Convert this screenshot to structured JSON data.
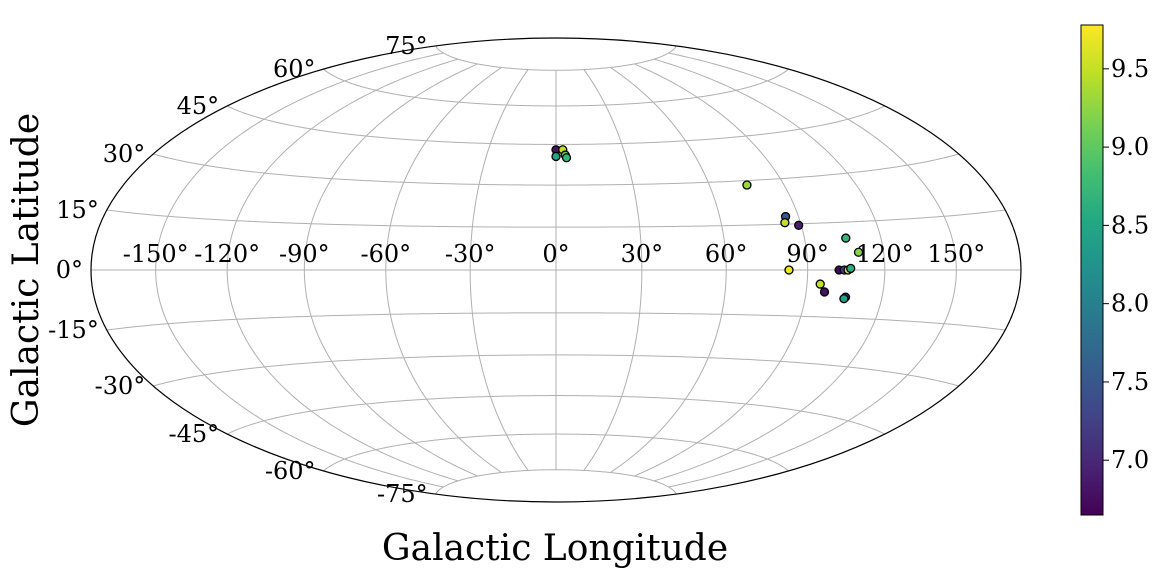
{
  "chart_data": {
    "type": "scatter",
    "projection": "hammer",
    "xlabel": "Galactic Longitude",
    "ylabel": "Galactic Latitude",
    "grid": true,
    "x_ticks": [
      -150,
      -120,
      -90,
      -60,
      -30,
      0,
      30,
      60,
      90,
      120,
      150
    ],
    "y_ticks": [
      -75,
      -60,
      -45,
      -30,
      -15,
      0,
      15,
      30,
      45,
      60,
      75
    ],
    "x_tick_labels": [
      "-150°",
      "-120°",
      "-90°",
      "-60°",
      "-30°",
      "0°",
      "30°",
      "60°",
      "90°",
      "120°",
      "150°"
    ],
    "y_tick_labels": [
      "-75°",
      "-60°",
      "-45°",
      "-30°",
      "-15°",
      "0°",
      "15°",
      "30°",
      "45°",
      "60°",
      "75°"
    ],
    "colormap": "viridis",
    "colorbar": {
      "range": [
        6.65,
        9.78
      ],
      "ticks": [
        7.0,
        7.5,
        8.0,
        8.5,
        9.0,
        9.5
      ],
      "tick_labels": [
        "7.0",
        "7.5",
        "8.0",
        "8.5",
        "9.0",
        "9.5"
      ]
    },
    "points": [
      {
        "lon": 0.0,
        "lat": 43.0,
        "value": 6.8
      },
      {
        "lon": 3.0,
        "lat": 43.0,
        "value": 9.5
      },
      {
        "lon": 0.0,
        "lat": 40.5,
        "value": 8.5
      },
      {
        "lon": 4.0,
        "lat": 41.0,
        "value": 9.0
      },
      {
        "lon": 4.5,
        "lat": 40.0,
        "value": 8.7
      },
      {
        "lon": 75.0,
        "lat": 28.5,
        "value": 9.3
      },
      {
        "lon": 85.0,
        "lat": 17.5,
        "value": 7.5
      },
      {
        "lon": 84.0,
        "lat": 15.5,
        "value": 9.5
      },
      {
        "lon": 89.0,
        "lat": 14.5,
        "value": 6.9
      },
      {
        "lon": 106.0,
        "lat": 10.0,
        "value": 8.7
      },
      {
        "lon": 110.0,
        "lat": 5.5,
        "value": 9.2
      },
      {
        "lon": 83.0,
        "lat": 0.0,
        "value": 9.7
      },
      {
        "lon": 102.0,
        "lat": 0.0,
        "value": 6.7
      },
      {
        "lon": 104.0,
        "lat": 0.0,
        "value": 7.2
      },
      {
        "lon": 105.5,
        "lat": 0.0,
        "value": 9.6
      },
      {
        "lon": 106.5,
        "lat": 0.5,
        "value": 8.6
      },
      {
        "lon": 95.0,
        "lat": -4.5,
        "value": 9.5
      },
      {
        "lon": 97.0,
        "lat": -7.0,
        "value": 6.8
      },
      {
        "lon": 105.5,
        "lat": -8.5,
        "value": 7.0
      },
      {
        "lon": 105.0,
        "lat": -9.0,
        "value": 8.4
      }
    ]
  }
}
